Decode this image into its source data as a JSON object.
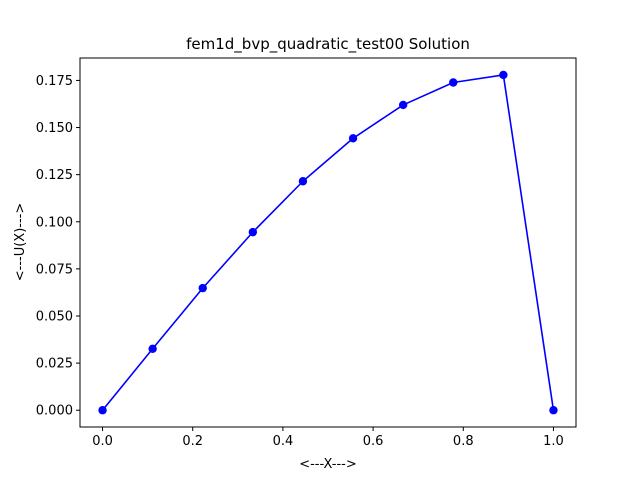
{
  "chart_data": {
    "type": "line",
    "title": "fem1d_bvp_quadratic_test00 Solution",
    "xlabel": "<---X--->",
    "ylabel": "<---U(X)--->",
    "xlim": [
      -0.05,
      1.05
    ],
    "ylim": [
      -0.0089,
      0.1869
    ],
    "xticks": [
      0.0,
      0.2,
      0.4,
      0.6,
      0.8,
      1.0
    ],
    "xtick_labels": [
      "0.0",
      "0.2",
      "0.4",
      "0.6",
      "0.8",
      "1.0"
    ],
    "yticks": [
      0.0,
      0.025,
      0.05,
      0.075,
      0.1,
      0.125,
      0.15,
      0.175
    ],
    "ytick_labels": [
      "0.000",
      "0.025",
      "0.050",
      "0.075",
      "0.100",
      "0.125",
      "0.150",
      "0.175"
    ],
    "grid": false,
    "series": [
      {
        "color": "#0000ff",
        "marker": "circle",
        "x": [
          0.0,
          0.1111,
          0.2222,
          0.3333,
          0.4444,
          0.5556,
          0.6667,
          0.7778,
          0.8889,
          1.0
        ],
        "y": [
          0.0,
          0.0326,
          0.0648,
          0.0945,
          0.1215,
          0.1443,
          0.162,
          0.1739,
          0.1779,
          0.0
        ]
      }
    ]
  }
}
